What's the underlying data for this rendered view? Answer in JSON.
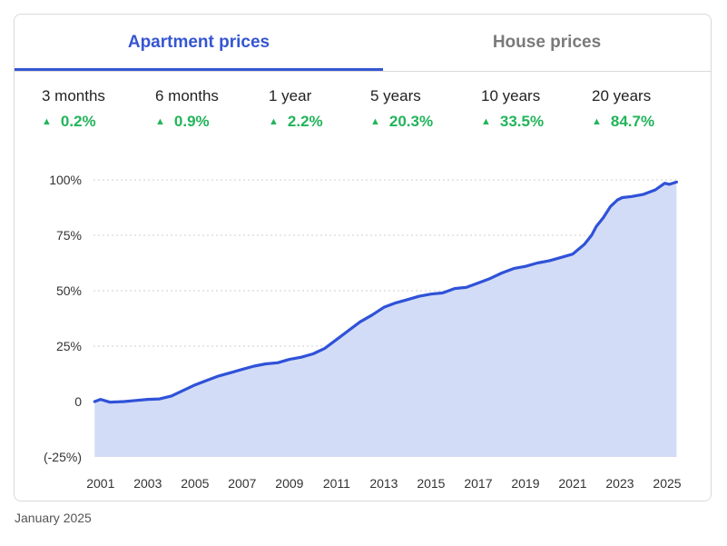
{
  "tabs": [
    {
      "label": "Apartment prices",
      "active": true
    },
    {
      "label": "House prices",
      "active": false
    }
  ],
  "stats": [
    {
      "period": "3 months",
      "change": "0.2%"
    },
    {
      "period": "6 months",
      "change": "0.9%"
    },
    {
      "period": "1 year",
      "change": "2.2%"
    },
    {
      "period": "5 years",
      "change": "20.3%"
    },
    {
      "period": "10 years",
      "change": "33.5%"
    },
    {
      "period": "20 years",
      "change": "84.7%"
    }
  ],
  "stat_direction_icon": "triangle-up-icon",
  "colors": {
    "accent": "#3556d2",
    "line": "#2f52d8",
    "area": "#d3dcf6",
    "positive": "#22b45a",
    "inactive": "#7a7a7a"
  },
  "footer": {
    "date": "January 2025"
  },
  "chart_data": {
    "type": "area",
    "title": "",
    "xlabel": "",
    "ylabel": "",
    "xlim": [
      2000.7,
      2025.5
    ],
    "ylim": [
      -25,
      100
    ],
    "y_ticks": [
      {
        "value": 100,
        "label": "100%"
      },
      {
        "value": 75,
        "label": "75%"
      },
      {
        "value": 50,
        "label": "50%"
      },
      {
        "value": 25,
        "label": "25%"
      },
      {
        "value": 0,
        "label": "0"
      },
      {
        "value": -25,
        "label": "(-25%)"
      }
    ],
    "x_ticks": [
      "2001",
      "2003",
      "2005",
      "2007",
      "2009",
      "2011",
      "2013",
      "2015",
      "2017",
      "2019",
      "2021",
      "2023",
      "2025"
    ],
    "grid": true,
    "series": [
      {
        "x": [
          2000.75,
          2001.0,
          2001.4,
          2002.0,
          2002.5,
          2003.0,
          2003.5,
          2004.0,
          2004.5,
          2005.0,
          2005.5,
          2006.0,
          2006.5,
          2007.0,
          2007.5,
          2008.0,
          2008.5,
          2009.0,
          2009.5,
          2010.0,
          2010.5,
          2011.0,
          2011.5,
          2012.0,
          2012.5,
          2013.0,
          2013.5,
          2014.0,
          2014.5,
          2015.0,
          2015.5,
          2016.0,
          2016.5,
          2017.0,
          2017.5,
          2018.0,
          2018.5,
          2019.0,
          2019.5,
          2020.0,
          2020.5,
          2021.0,
          2021.5,
          2021.8,
          2022.0,
          2022.3,
          2022.6,
          2022.9,
          2023.1,
          2023.5,
          2024.0,
          2024.5,
          2024.9,
          2025.1,
          2025.4
        ],
        "y": [
          0,
          1,
          -0.3,
          0,
          0.5,
          1,
          1.2,
          2.5,
          5,
          7.5,
          9.5,
          11.5,
          13,
          14.5,
          16,
          17,
          17.5,
          19,
          20,
          21.5,
          24,
          28,
          32,
          36,
          39,
          42.5,
          44.5,
          46,
          47.5,
          48.5,
          49,
          51,
          51.5,
          53.5,
          55.5,
          58,
          60,
          61,
          62.5,
          63.5,
          65,
          66.5,
          71,
          75,
          79,
          83,
          88,
          91,
          92,
          92.5,
          93.5,
          95.5,
          98.5,
          98,
          99
        ]
      }
    ]
  }
}
